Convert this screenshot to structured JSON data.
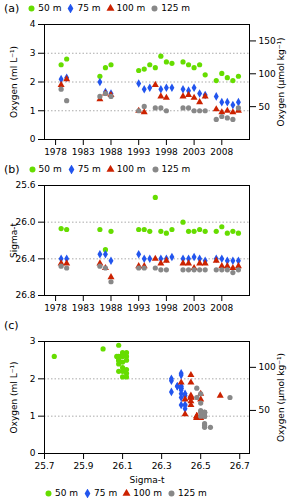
{
  "chart_data": [
    {
      "type": "scatter",
      "title": "(a)",
      "ylabel": "Oxygen (ml L⁻¹)",
      "y2label": "Oxygen (µmol kg⁻¹)",
      "xlim": [
        1976,
        2013
      ],
      "xticks": [
        1978,
        1983,
        1988,
        1993,
        1998,
        2003,
        2008
      ],
      "ylim": [
        0,
        4
      ],
      "yticks": [
        0,
        1,
        2,
        3,
        4
      ],
      "y2lim": [
        0,
        175
      ],
      "y2ticks": [
        50,
        100,
        150
      ],
      "hlines": [
        1,
        2,
        3
      ],
      "legend": "upper left",
      "series": [
        {
          "name": "50 m",
          "color": "#66dd00",
          "marker": "circle",
          "x": [
            1979,
            1980,
            1986,
            1987,
            1988,
            1993,
            1994,
            1995,
            1996,
            1997,
            1998,
            1999,
            2001,
            2002,
            2003,
            2004,
            2005,
            2007,
            2008,
            2009,
            2010,
            2011
          ],
          "values": [
            2.6,
            2.8,
            2.2,
            2.5,
            2.6,
            2.4,
            2.45,
            2.6,
            2.5,
            2.9,
            2.7,
            2.65,
            2.7,
            2.6,
            2.5,
            2.6,
            2.25,
            2.05,
            2.3,
            2.15,
            2.05,
            2.2
          ]
        },
        {
          "name": "75 m",
          "color": "#2255ee",
          "marker": "diamond",
          "x": [
            1979,
            1980,
            1986,
            1987,
            1988,
            1993,
            1994,
            1995,
            1997,
            1998,
            1999,
            2001,
            2002,
            2003,
            2004,
            2005,
            2007,
            2008,
            2009,
            2010,
            2011
          ],
          "values": [
            2.1,
            2.15,
            2.0,
            1.65,
            1.6,
            1.95,
            1.75,
            1.8,
            1.75,
            1.8,
            1.8,
            1.75,
            1.7,
            1.8,
            1.6,
            1.55,
            1.5,
            1.3,
            1.3,
            1.2,
            1.3
          ]
        },
        {
          "name": "100 m",
          "color": "#cc2200",
          "marker": "triangle",
          "x": [
            1979,
            1980,
            1986,
            1987,
            1988,
            1993,
            1994,
            1996,
            1997,
            1998,
            2001,
            2002,
            2003,
            2004,
            2005,
            2007,
            2008,
            2009,
            2010,
            2011
          ],
          "values": [
            1.9,
            2.1,
            1.4,
            1.6,
            1.55,
            1.0,
            0.95,
            1.9,
            1.5,
            1.45,
            1.5,
            1.55,
            1.45,
            1.3,
            1.5,
            1.05,
            0.95,
            1.0,
            0.95,
            1.0
          ]
        },
        {
          "name": "125 m",
          "color": "#888888",
          "marker": "circle",
          "x": [
            1979,
            1980,
            1986,
            1987,
            1988,
            1993,
            1994,
            1996,
            1997,
            1998,
            2001,
            2002,
            2003,
            2004,
            2005,
            2007,
            2008,
            2009,
            2010,
            2011
          ],
          "values": [
            1.75,
            1.35,
            1.5,
            1.6,
            1.5,
            1.0,
            1.15,
            1.1,
            1.1,
            1.0,
            1.1,
            1.1,
            1.0,
            1.0,
            1.0,
            0.7,
            0.8,
            0.75,
            0.7,
            1.1
          ]
        }
      ]
    },
    {
      "type": "scatter",
      "title": "(b)",
      "ylabel": "Sigma-t",
      "xlim": [
        1976,
        2013
      ],
      "xticks": [
        1978,
        1983,
        1988,
        1993,
        1998,
        2003,
        2008
      ],
      "ylim": [
        26.8,
        25.6
      ],
      "yticks": [
        25.6,
        {
          "value": 26.0,
          "label": "26.0"
        },
        26.4,
        26.8
      ],
      "hlines": [
        26.0,
        26.4
      ],
      "legend": "upper left",
      "series": [
        {
          "name": "50 m",
          "color": "#66dd00",
          "marker": "circle",
          "x": [
            1979,
            1980,
            1986,
            1987,
            1988,
            1993,
            1994,
            1995,
            1996,
            1997,
            1998,
            1999,
            2001,
            2002,
            2003,
            2004,
            2005,
            2007,
            2008,
            2009,
            2010,
            2011
          ],
          "values": [
            26.07,
            26.08,
            26.08,
            26.3,
            26.1,
            26.08,
            26.08,
            26.1,
            25.73,
            26.1,
            26.12,
            26.08,
            26.0,
            26.1,
            26.1,
            26.08,
            26.1,
            26.1,
            26.05,
            26.12,
            26.1,
            26.12
          ]
        },
        {
          "name": "75 m",
          "color": "#2255ee",
          "marker": "diamond",
          "x": [
            1979,
            1980,
            1986,
            1987,
            1988,
            1993,
            1994,
            1995,
            1997,
            1998,
            1999,
            2001,
            2002,
            2003,
            2004,
            2005,
            2007,
            2008,
            2009,
            2010,
            2011
          ],
          "values": [
            26.4,
            26.4,
            26.35,
            26.35,
            26.42,
            26.35,
            26.4,
            26.4,
            26.4,
            26.4,
            26.38,
            26.4,
            26.4,
            26.38,
            26.4,
            26.42,
            26.4,
            26.4,
            26.42,
            26.42,
            26.42
          ]
        },
        {
          "name": "100 m",
          "color": "#cc2200",
          "marker": "triangle",
          "x": [
            1979,
            1980,
            1986,
            1987,
            1988,
            1993,
            1994,
            1996,
            1997,
            1998,
            2001,
            2002,
            2003,
            2004,
            2005,
            2007,
            2008,
            2009,
            2010,
            2011
          ],
          "values": [
            26.45,
            26.45,
            26.45,
            26.5,
            26.6,
            26.48,
            26.48,
            26.4,
            26.45,
            26.42,
            26.45,
            26.45,
            26.5,
            26.45,
            26.45,
            26.42,
            26.48,
            26.48,
            26.5,
            26.48
          ]
        },
        {
          "name": "125 m",
          "color": "#888888",
          "marker": "circle",
          "x": [
            1979,
            1980,
            1986,
            1987,
            1988,
            1993,
            1994,
            1996,
            1997,
            1998,
            2001,
            2002,
            2003,
            2004,
            2005,
            2007,
            2008,
            2009,
            2010,
            2011
          ],
          "values": [
            26.48,
            26.5,
            26.48,
            26.5,
            26.65,
            26.5,
            26.5,
            26.5,
            26.52,
            26.52,
            26.52,
            26.52,
            26.52,
            26.52,
            26.52,
            26.52,
            26.52,
            26.52,
            26.55,
            26.52
          ]
        }
      ]
    },
    {
      "type": "scatter",
      "title": "(c)",
      "xlabel": "Sigma-t",
      "ylabel": "Oxygen (ml L⁻¹)",
      "y2label": "Oxygen (µmol kg⁻¹)",
      "xlim": [
        25.7,
        26.75
      ],
      "xticks": [
        25.7,
        25.9,
        26.1,
        26.3,
        26.5,
        26.7
      ],
      "ylim": [
        0,
        3
      ],
      "yticks": [
        0,
        1,
        2,
        3
      ],
      "y2lim": [
        0,
        130
      ],
      "y2ticks": [
        50,
        100
      ],
      "hlines": [
        1,
        2
      ],
      "legend": "lower left",
      "series": [
        {
          "name": "50 m",
          "color": "#66dd00",
          "marker": "circle",
          "x": [
            25.75,
            26.0,
            26.08,
            26.08,
            26.07,
            26.08,
            26.1,
            26.08,
            26.08,
            26.08,
            26.1,
            26.1,
            26.12,
            26.12,
            26.12,
            26.1,
            26.12,
            26.1,
            26.1,
            26.12,
            26.12,
            26.1
          ],
          "values": [
            2.6,
            2.8,
            2.2,
            2.5,
            2.6,
            2.4,
            2.45,
            2.6,
            2.5,
            2.9,
            2.7,
            2.65,
            2.7,
            2.6,
            2.5,
            2.6,
            2.25,
            2.05,
            2.3,
            2.15,
            2.05,
            2.2
          ]
        },
        {
          "name": "75 m",
          "color": "#2255ee",
          "marker": "diamond",
          "x": [
            26.4,
            26.4,
            26.35,
            26.35,
            26.42,
            26.35,
            26.4,
            26.4,
            26.4,
            26.4,
            26.38,
            26.4,
            26.4,
            26.38,
            26.4,
            26.42,
            26.4,
            26.4,
            26.42,
            26.42,
            26.42
          ],
          "values": [
            2.1,
            2.15,
            2.0,
            1.65,
            1.6,
            1.95,
            1.75,
            1.8,
            1.75,
            1.8,
            1.8,
            1.75,
            1.7,
            1.8,
            1.6,
            1.55,
            1.5,
            1.3,
            1.3,
            1.2,
            1.3
          ]
        },
        {
          "name": "100 m",
          "color": "#cc2200",
          "marker": "triangle",
          "x": [
            26.45,
            26.45,
            26.45,
            26.5,
            26.6,
            26.48,
            26.48,
            26.4,
            26.45,
            26.42,
            26.45,
            26.45,
            26.5,
            26.45,
            26.45,
            26.42,
            26.48,
            26.48,
            26.5,
            26.48
          ],
          "values": [
            1.9,
            2.1,
            1.4,
            1.6,
            1.55,
            1.0,
            0.95,
            1.9,
            1.5,
            1.45,
            1.5,
            1.55,
            1.45,
            1.3,
            1.5,
            1.05,
            0.95,
            1.0,
            0.95,
            1.0
          ]
        },
        {
          "name": "125 m",
          "color": "#888888",
          "marker": "circle",
          "x": [
            26.48,
            26.5,
            26.48,
            26.5,
            26.65,
            26.5,
            26.5,
            26.5,
            26.52,
            26.52,
            26.52,
            26.52,
            26.52,
            26.52,
            26.52,
            26.52,
            26.52,
            26.52,
            26.55,
            26.52
          ],
          "values": [
            1.75,
            1.35,
            1.5,
            1.6,
            1.5,
            1.0,
            1.15,
            1.1,
            1.1,
            1.0,
            1.1,
            1.1,
            1.0,
            1.0,
            1.0,
            0.7,
            0.8,
            0.75,
            0.7,
            1.1
          ]
        }
      ]
    }
  ]
}
